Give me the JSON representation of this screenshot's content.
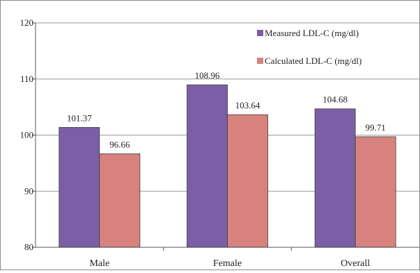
{
  "chart_data": {
    "type": "bar",
    "categories": [
      "Male",
      "Female",
      "Overall"
    ],
    "series": [
      {
        "name": "Measured LDL-C (mg/dl)",
        "values": [
          101.37,
          108.96,
          104.68
        ],
        "color": "#7b5fa6"
      },
      {
        "name": "Calculated LDL-C (mg/dl)",
        "values": [
          96.66,
          103.64,
          99.71
        ],
        "color": "#d7827f"
      }
    ],
    "data_labels": [
      [
        "101.37",
        "108.96",
        "104.68"
      ],
      [
        "96.66",
        "103.64",
        "99.71"
      ]
    ],
    "ylim": [
      80,
      120
    ],
    "yticks": [
      "80",
      "90",
      "100",
      "110",
      "120"
    ],
    "ytick_values": [
      80,
      90,
      100,
      110,
      120
    ],
    "grid": true,
    "legend_position": "top-right",
    "title": "",
    "xlabel": "",
    "ylabel": ""
  }
}
